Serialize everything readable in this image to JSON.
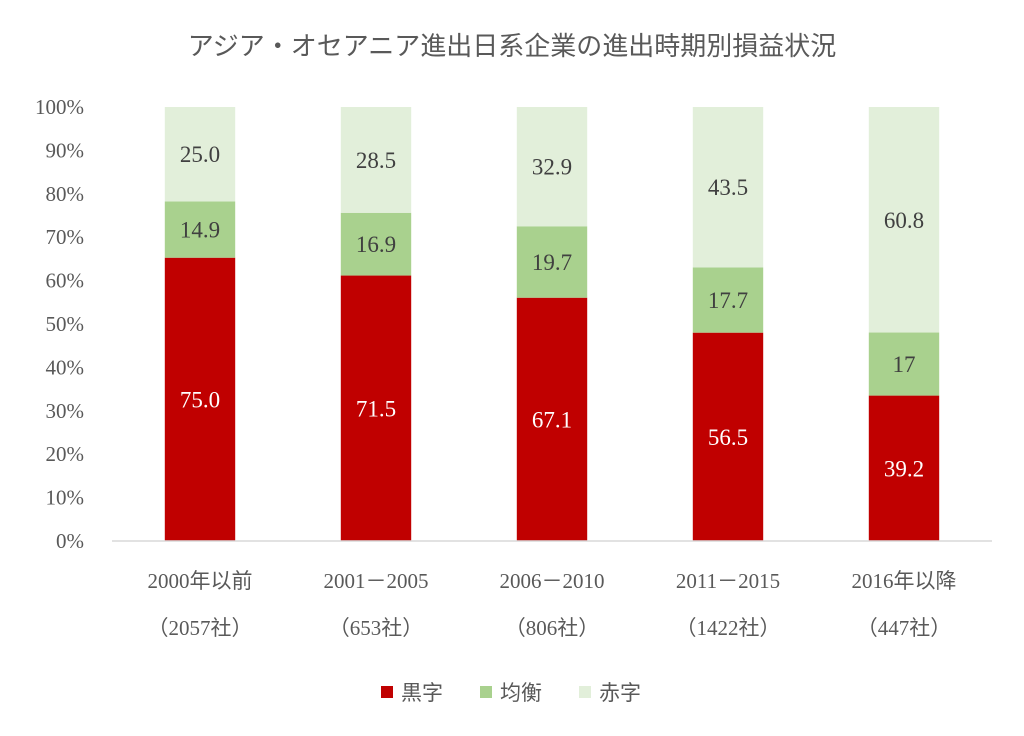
{
  "chart_data": {
    "type": "bar",
    "stacking": "percent",
    "title": "アジア・オセアニア進出日系企業の進出時期別損益状況",
    "xlabel": "",
    "ylabel": "",
    "categories": [
      [
        "2000年以前",
        "（2057社）"
      ],
      [
        "2001－2005",
        "（653社）"
      ],
      [
        "2006－2010",
        "（806社）"
      ],
      [
        "2011－2015",
        "（1422社）"
      ],
      [
        "2016年以降",
        "（447社）"
      ]
    ],
    "series": [
      {
        "name": "黒字",
        "color": "#C00000",
        "label_color": "#FFFFFF",
        "values": [
          75.0,
          71.5,
          67.1,
          56.5,
          39.2
        ],
        "labels": [
          "75.0",
          "71.5",
          "67.1",
          "56.5",
          "39.2"
        ]
      },
      {
        "name": "均衡",
        "color": "#A9D18E",
        "label_color": "#404040",
        "values": [
          14.9,
          16.9,
          19.7,
          17.7,
          17
        ],
        "labels": [
          "14.9",
          "16.9",
          "19.7",
          "17.7",
          "17"
        ]
      },
      {
        "name": "赤字",
        "color": "#E2EFDA",
        "label_color": "#404040",
        "values": [
          25.0,
          28.5,
          32.9,
          43.5,
          60.8
        ],
        "labels": [
          "25.0",
          "28.5",
          "32.9",
          "43.5",
          "60.8"
        ]
      }
    ],
    "ylim": [
      0,
      100
    ],
    "yticks": [
      "0%",
      "10%",
      "20%",
      "30%",
      "40%",
      "50%",
      "60%",
      "70%",
      "80%",
      "90%",
      "100%"
    ],
    "grid": false,
    "legend": "bottom"
  }
}
